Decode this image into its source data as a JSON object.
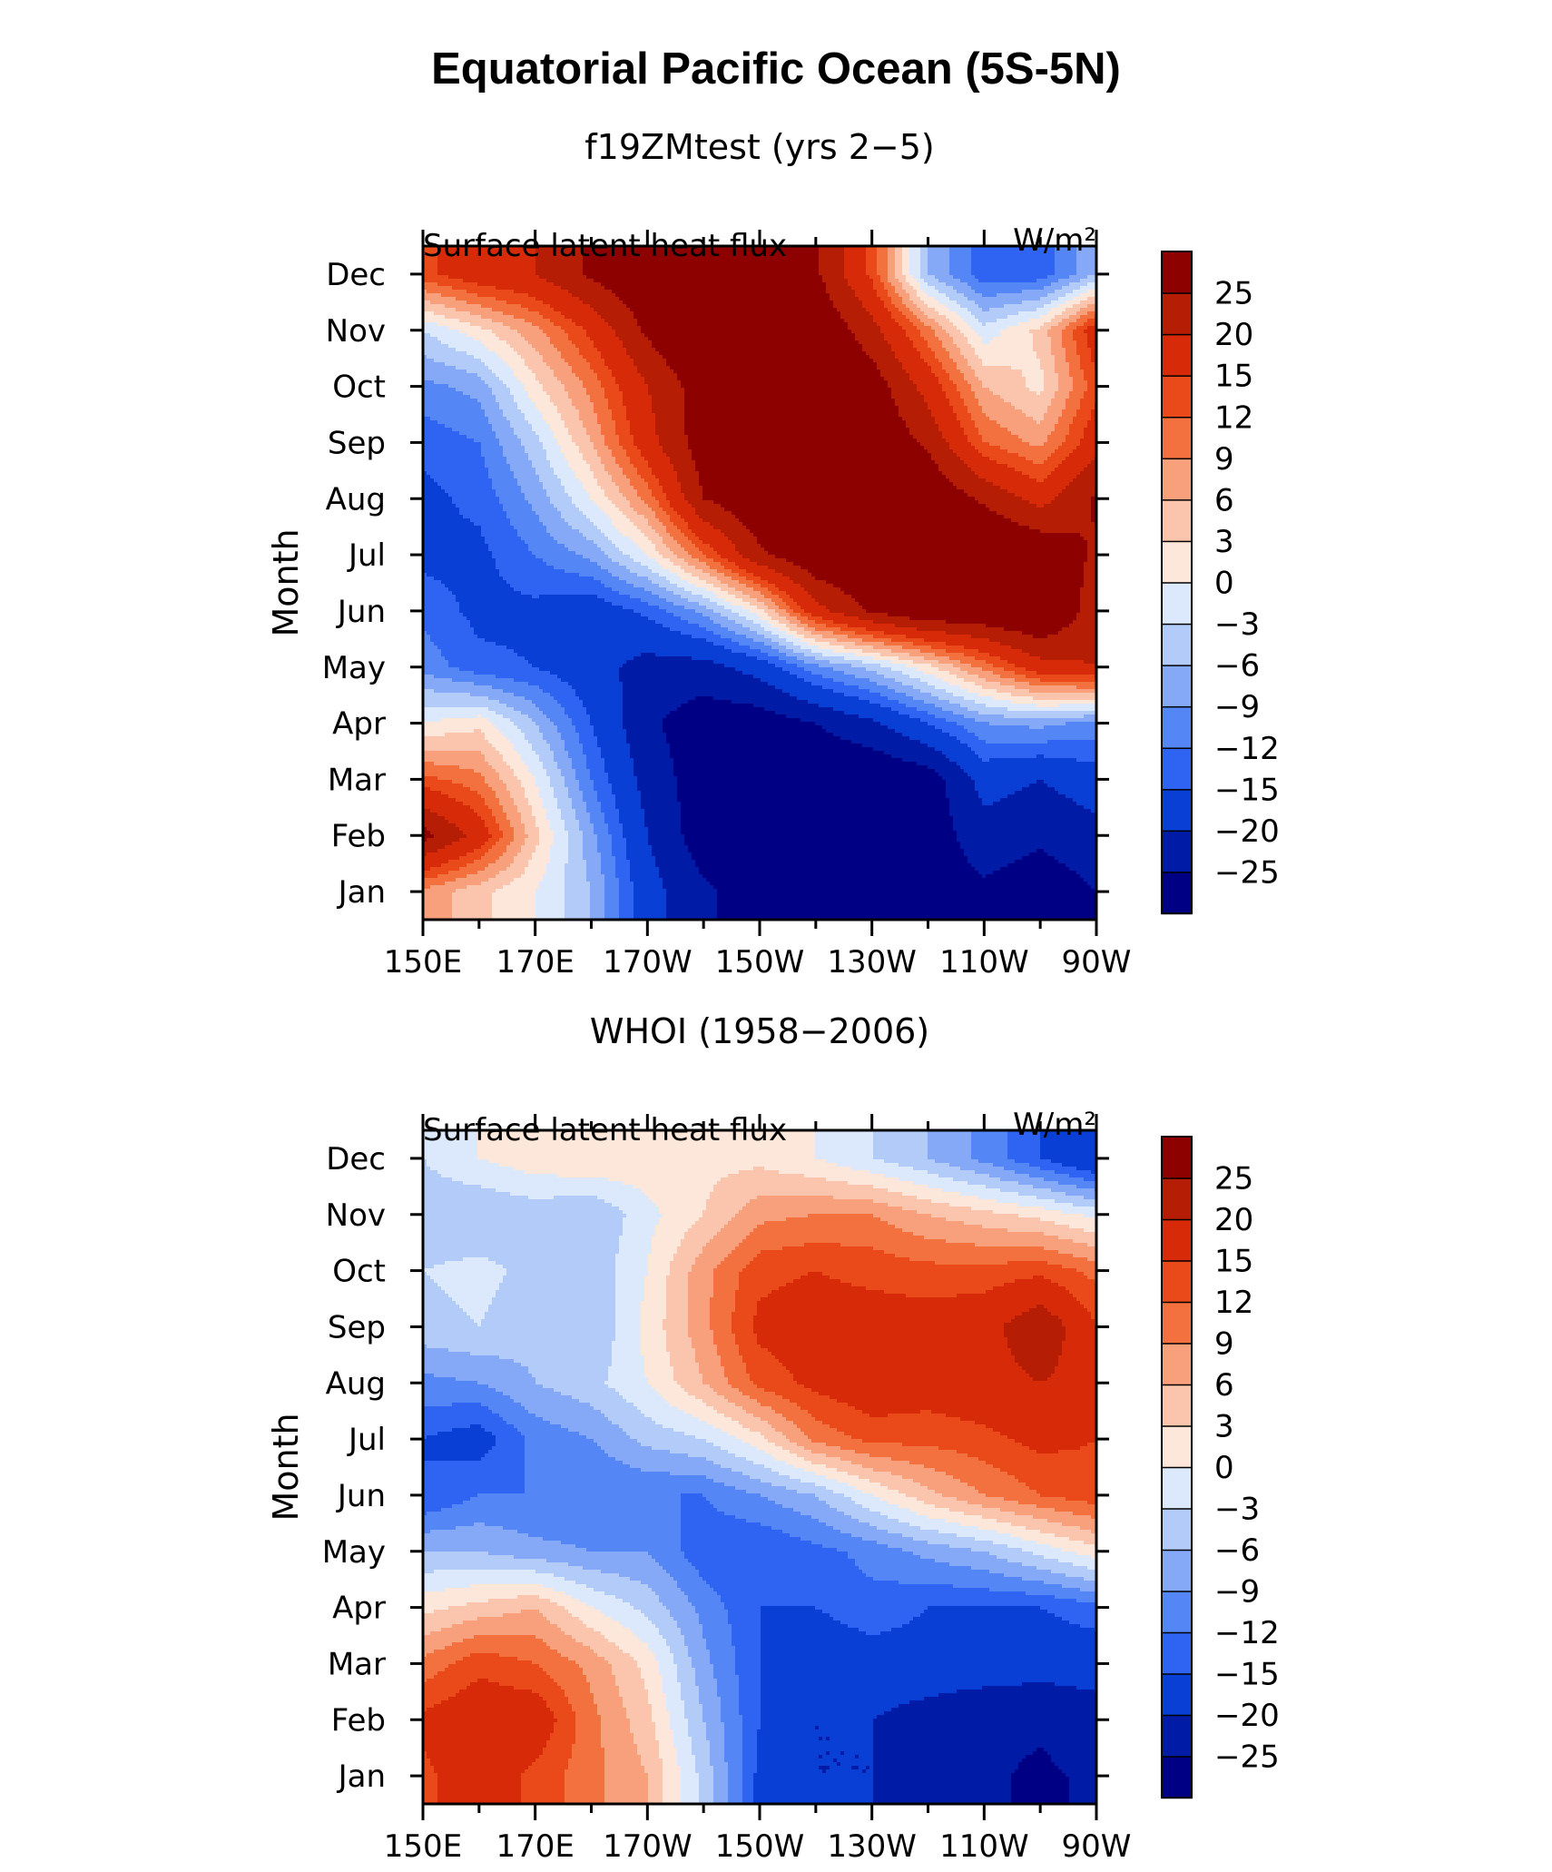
{
  "figure": {
    "title": "Equatorial Pacific Ocean (5S-5N)"
  },
  "chart_data": [
    {
      "type": "heatmap",
      "subtitle": "f19ZMtest (yrs 2−5)",
      "left_label": "Surface latent heat flux",
      "units": "W/m²",
      "ylabel": "Month",
      "x_tick_labels": [
        "150E",
        "170E",
        "170W",
        "150W",
        "130W",
        "110W",
        "90W"
      ],
      "x_lon_range": [
        150,
        270
      ],
      "y_tick_labels": [
        "Jan",
        "Feb",
        "Mar",
        "Apr",
        "May",
        "Jun",
        "Jul",
        "Aug",
        "Sep",
        "Oct",
        "Nov",
        "Dec"
      ],
      "colorbar_labels": [
        "25",
        "20",
        "15",
        "12",
        "9",
        "6",
        "3",
        "0",
        "−3",
        "−6",
        "−9",
        "−12",
        "−15",
        "−20",
        "−25"
      ],
      "levels": [
        -25,
        -20,
        -15,
        -12,
        -9,
        -6,
        -3,
        0,
        3,
        6,
        9,
        12,
        15,
        20,
        25
      ],
      "colors": [
        "#000085",
        "#001ca6",
        "#0a3fd6",
        "#2f64f2",
        "#5586f5",
        "#86a9f7",
        "#b3cbf8",
        "#dce8fc",
        "#fde6da",
        "#fbc5ad",
        "#f89f7c",
        "#f3713f",
        "#ea4a1a",
        "#d72a08",
        "#b51d05",
        "#8d0101"
      ],
      "lon": [
        150,
        160,
        170,
        180,
        190,
        200,
        210,
        220,
        230,
        240,
        250,
        260,
        270
      ],
      "month": [
        1,
        2,
        3,
        4,
        5,
        6,
        7,
        8,
        9,
        10,
        11,
        12
      ],
      "z": [
        [
          8,
          4,
          0,
          -6,
          -18,
          -24,
          -28,
          -30,
          -30,
          -28,
          -26,
          -28,
          -25
        ],
        [
          27,
          18,
          4,
          -8,
          -20,
          -28,
          -30,
          -32,
          -30,
          -28,
          -22,
          -24,
          -22
        ],
        [
          13,
          10,
          0,
          -12,
          -22,
          -28,
          -30,
          -30,
          -30,
          -28,
          -18,
          -20,
          -17
        ],
        [
          0,
          2,
          -6,
          -15,
          -24,
          -28,
          -28,
          -25,
          -21,
          -15,
          -9,
          -8,
          -10
        ],
        [
          -10,
          -14,
          -15,
          -18,
          -22,
          -22,
          -18,
          -10,
          -5,
          2,
          10,
          18,
          20
        ],
        [
          -13,
          -16,
          -16,
          -18,
          -14,
          -8,
          2,
          18,
          26,
          30,
          30,
          32,
          22
        ],
        [
          -16,
          -16,
          -12,
          -8,
          0,
          12,
          24,
          30,
          32,
          32,
          32,
          30,
          24
        ],
        [
          -16,
          -14,
          -8,
          0,
          10,
          25,
          30,
          32,
          32,
          30,
          24,
          18,
          26
        ],
        [
          -14,
          -12,
          -4,
          6,
          18,
          28,
          32,
          32,
          30,
          24,
          12,
          8,
          18
        ],
        [
          -10,
          -8,
          2,
          10,
          20,
          28,
          32,
          32,
          28,
          18,
          6,
          2,
          14
        ],
        [
          -3,
          2,
          8,
          16,
          26,
          32,
          32,
          30,
          22,
          10,
          -2,
          4,
          18
        ],
        [
          14,
          18,
          20,
          26,
          30,
          32,
          30,
          26,
          14,
          -6,
          -14,
          -14,
          -6
        ]
      ]
    },
    {
      "type": "heatmap",
      "subtitle": "WHOI (1958−2006)",
      "left_label": "Surface latent heat flux",
      "units": "W/m²",
      "ylabel": "Month",
      "x_tick_labels": [
        "150E",
        "170E",
        "170W",
        "150W",
        "130W",
        "110W",
        "90W"
      ],
      "x_lon_range": [
        150,
        270
      ],
      "y_tick_labels": [
        "Jan",
        "Feb",
        "Mar",
        "Apr",
        "May",
        "Jun",
        "Jul",
        "Aug",
        "Sep",
        "Oct",
        "Nov",
        "Dec"
      ],
      "colorbar_labels": [
        "25",
        "20",
        "15",
        "12",
        "9",
        "6",
        "3",
        "0",
        "−3",
        "−6",
        "−9",
        "−12",
        "−15",
        "−20",
        "−25"
      ],
      "levels": [
        -25,
        -20,
        -15,
        -12,
        -9,
        -6,
        -3,
        0,
        3,
        6,
        9,
        12,
        15,
        20,
        25
      ],
      "colors": [
        "#000085",
        "#001ca6",
        "#0a3fd6",
        "#2f64f2",
        "#5586f5",
        "#86a9f7",
        "#b3cbf8",
        "#dce8fc",
        "#fde6da",
        "#fbc5ad",
        "#f89f7c",
        "#f3713f",
        "#ea4a1a",
        "#d72a08",
        "#b51d05",
        "#8d0101"
      ],
      "lon": [
        150,
        160,
        170,
        180,
        190,
        200,
        210,
        220,
        230,
        240,
        250,
        260,
        270
      ],
      "month": [
        1,
        2,
        3,
        4,
        5,
        6,
        7,
        8,
        9,
        10,
        11,
        12
      ],
      "z": [
        [
          14,
          18,
          14,
          10,
          6,
          -4,
          -16,
          -20,
          -20,
          -22,
          -24,
          -26,
          -24
        ],
        [
          16,
          18,
          18,
          10,
          4,
          -6,
          -15,
          -20,
          -20,
          -22,
          -24,
          -24,
          -22
        ],
        [
          10,
          14,
          12,
          8,
          2,
          -8,
          -15,
          -18,
          -17,
          -17,
          -17,
          -18,
          -18
        ],
        [
          2,
          4,
          6,
          0,
          -4,
          -10,
          -15,
          -15,
          -13,
          -15,
          -15,
          -15,
          -13
        ],
        [
          -6,
          -6,
          -8,
          -9,
          -9,
          -14,
          -15,
          -13,
          -11,
          -8,
          -6,
          -2,
          2
        ],
        [
          -15,
          -12,
          -12,
          -12,
          -12,
          -12,
          -9,
          -6,
          0,
          5,
          9,
          12,
          14
        ],
        [
          -15,
          -17,
          -11,
          -9,
          -5,
          -3,
          2,
          10,
          13,
          13,
          14,
          16,
          15
        ],
        [
          -10,
          -9,
          -6,
          -4,
          0,
          6,
          13,
          16,
          18,
          17,
          18,
          20,
          18
        ],
        [
          -4,
          -3,
          -5,
          -6,
          1,
          8,
          16,
          17,
          17,
          17,
          18,
          24,
          15
        ],
        [
          -3,
          -2,
          -4,
          -5,
          0,
          8,
          14,
          15,
          14,
          13,
          13,
          14,
          11
        ],
        [
          -5,
          -6,
          -5,
          -6,
          -1,
          3,
          8,
          9,
          9,
          6,
          4,
          2,
          -1
        ],
        [
          -3,
          0,
          2,
          3,
          2,
          2,
          2,
          0,
          -3,
          -6,
          -10,
          -15,
          -20
        ]
      ]
    }
  ]
}
